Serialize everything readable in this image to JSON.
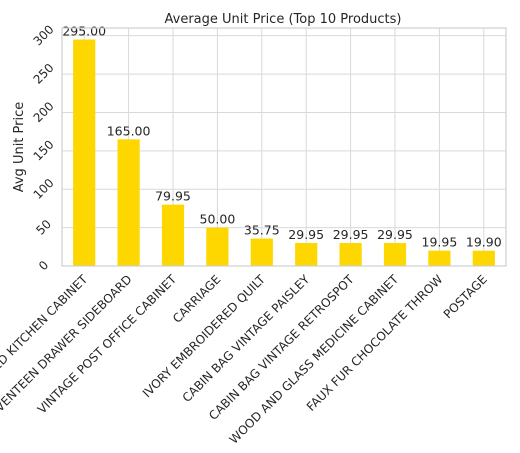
{
  "chart_data": {
    "type": "bar",
    "title": "Average Unit Price (Top 10 Products)",
    "xlabel": "",
    "ylabel": "Avg Unit Price",
    "ylim": [
      0,
      310
    ],
    "yticks": [
      0,
      50,
      100,
      150,
      200,
      250,
      300
    ],
    "grid": true,
    "bar_color": "#FFD700",
    "categories": [
      "VINTAGE RED KITCHEN CABINET",
      "RUSTIC  SEVENTEEN DRAWER SIDEBOARD",
      "VINTAGE POST OFFICE CABINET",
      "CARRIAGE",
      "IVORY EMBROIDERED QUILT",
      "CABIN BAG VINTAGE PAISLEY",
      "CABIN BAG VINTAGE RETROSPOT",
      "WOOD AND GLASS MEDICINE CABINET",
      "FAUX FUR CHOCOLATE THROW",
      "POSTAGE"
    ],
    "values": [
      295.0,
      165.0,
      79.95,
      50.0,
      35.75,
      29.95,
      29.95,
      29.95,
      19.95,
      19.9
    ],
    "value_labels": [
      "295.00",
      "165.00",
      "79.95",
      "50.00",
      "35.75",
      "29.95",
      "29.95",
      "29.95",
      "19.95",
      "19.90"
    ]
  }
}
